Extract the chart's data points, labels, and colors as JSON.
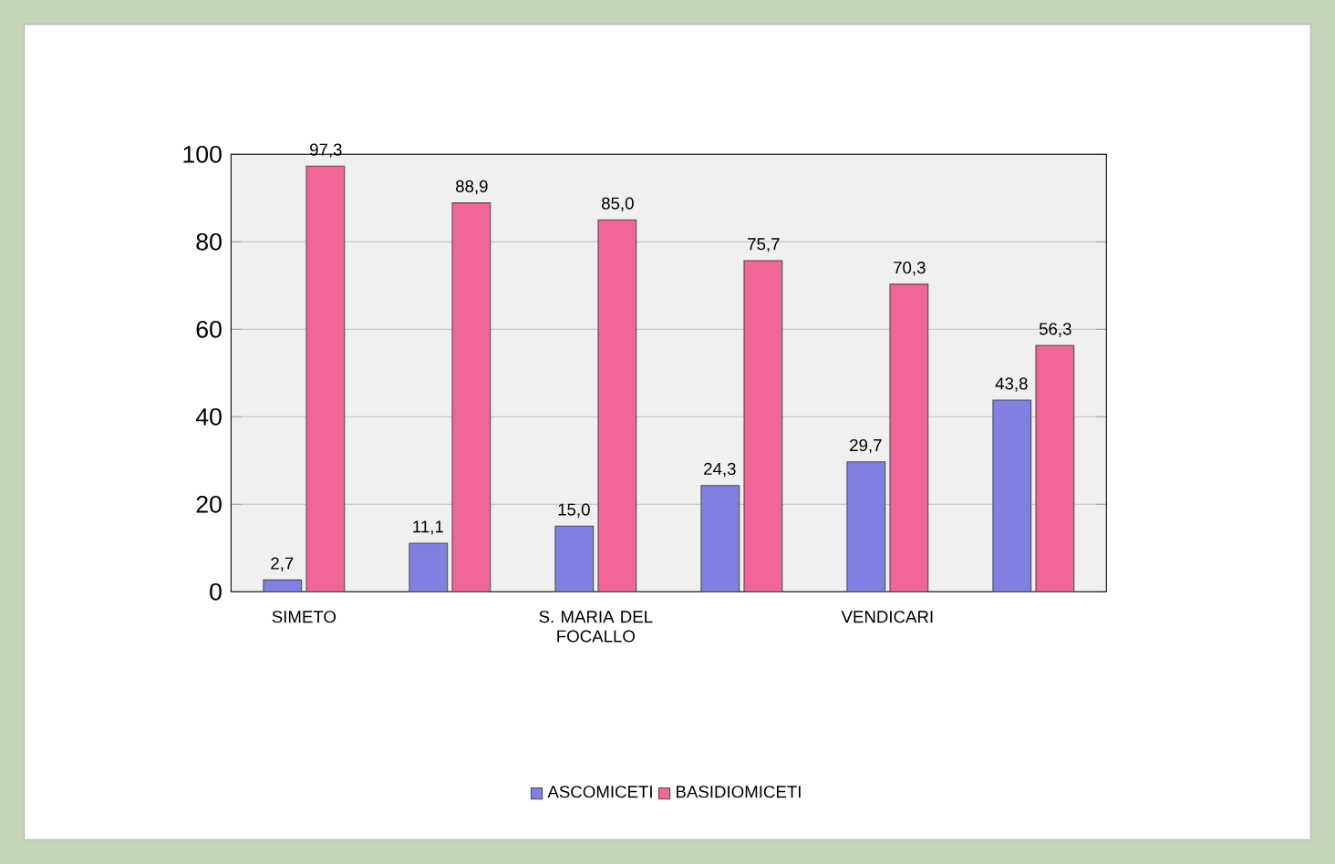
{
  "chart_data": {
    "type": "bar",
    "categories": [
      "SIMETO",
      null,
      "S. MARIA DEL FOCALLO",
      null,
      "VENDICARI",
      null
    ],
    "series": [
      {
        "name": "ASCOMICETI",
        "color": "#8080e0",
        "values": [
          2.7,
          11.1,
          15.0,
          24.3,
          29.7,
          43.8
        ],
        "value_labels": [
          "2,7",
          "11,1",
          "15,0",
          "24,3",
          "29,7",
          "43,8"
        ]
      },
      {
        "name": "BASIDIOMICETI",
        "color": "#f06698",
        "values": [
          97.3,
          88.9,
          85.0,
          75.7,
          70.3,
          56.3
        ],
        "value_labels": [
          "97,3",
          "88,9",
          "85,0",
          "75,7",
          "70,3",
          "56,3"
        ]
      }
    ],
    "ylim": [
      0,
      100
    ],
    "yticks": [
      0,
      20,
      40,
      60,
      80,
      100
    ],
    "grid": "y",
    "legend": "bottom"
  }
}
